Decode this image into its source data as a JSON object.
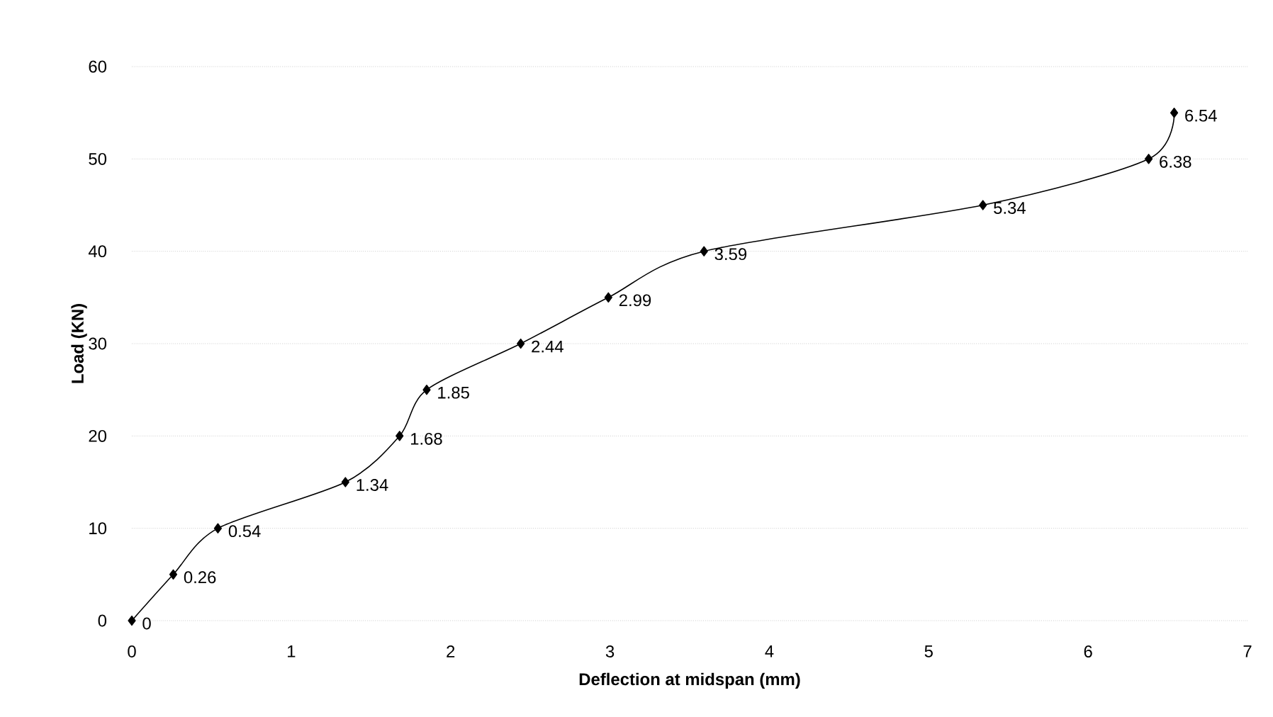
{
  "chart_data": {
    "type": "line",
    "xlabel": "Deflection at midspan (mm)",
    "ylabel": "Load (KN)",
    "x": [
      0,
      0.26,
      0.54,
      1.34,
      1.68,
      1.85,
      2.44,
      2.99,
      3.59,
      5.34,
      6.38,
      6.54
    ],
    "values": [
      0,
      5,
      10,
      15,
      20,
      25,
      30,
      35,
      40,
      45,
      50,
      55
    ],
    "annotations": [
      {
        "text": "0",
        "x": 0,
        "y": 0
      },
      {
        "text": "0.26",
        "x": 0.26,
        "y": 5
      },
      {
        "text": "0.54",
        "x": 0.54,
        "y": 10
      },
      {
        "text": "1.34",
        "x": 1.34,
        "y": 15
      },
      {
        "text": "1.68",
        "x": 1.68,
        "y": 20
      },
      {
        "text": "1.85",
        "x": 1.85,
        "y": 25
      },
      {
        "text": "2.44",
        "x": 2.44,
        "y": 30
      },
      {
        "text": "2.99",
        "x": 2.99,
        "y": 35
      },
      {
        "text": "3.59",
        "x": 3.59,
        "y": 40
      },
      {
        "text": "5.34",
        "x": 5.34,
        "y": 45
      },
      {
        "text": "6.38",
        "x": 6.38,
        "y": 50
      },
      {
        "text": "6.54",
        "x": 6.54,
        "y": 55
      }
    ],
    "color": "#000000",
    "marker": "diamond",
    "line_style": "solid",
    "grid": "y",
    "xlim": [
      0,
      7
    ],
    "xticks": [
      0,
      1,
      2,
      3,
      4,
      5,
      6,
      7
    ],
    "ylim": [
      0,
      60
    ],
    "yticks": [
      0,
      10,
      20,
      30,
      40,
      50,
      60
    ]
  }
}
